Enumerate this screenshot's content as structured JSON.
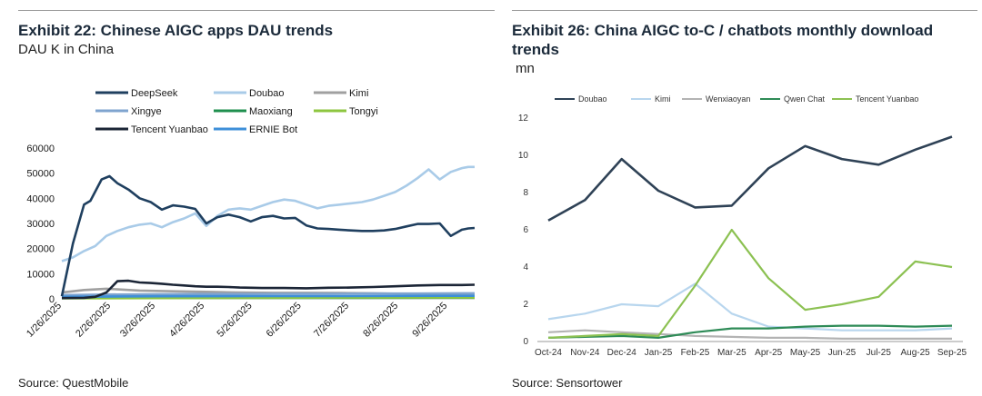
{
  "left": {
    "title": "Exhibit 22: Chinese AIGC apps DAU trends",
    "subtitle": "DAU K in China",
    "source": "Source: QuestMobile"
  },
  "right": {
    "title": "Exhibit 26: China AIGC to-C / chatbots monthly download trends",
    "subtitle": "mn",
    "source": "Source: Sensortower"
  },
  "chart_data": [
    {
      "type": "line",
      "title": "Exhibit 22: Chinese AIGC apps DAU trends",
      "ylabel": "DAU K in China",
      "ylim": [
        0,
        60000
      ],
      "yticks": [
        0,
        10000,
        20000,
        30000,
        40000,
        50000,
        60000
      ],
      "yticklabels": [
        "0",
        "10000",
        "20000",
        "30000",
        "40000",
        "50000",
        "60000"
      ],
      "xlim": [
        0,
        260
      ],
      "xticks": [
        0,
        31,
        59,
        90,
        120,
        151,
        181,
        212,
        243
      ],
      "xticklabels": [
        "1/26/2025",
        "2/26/2025",
        "3/26/2025",
        "4/26/2025",
        "5/26/2025",
        "6/26/2025",
        "7/26/2025",
        "8/26/2025",
        "9/26/2025"
      ],
      "legend": "top",
      "grid": false,
      "series": [
        {
          "name": "DeepSeek",
          "color": "#1f3f5f",
          "x": [
            0,
            7,
            14,
            18,
            25,
            30,
            35,
            42,
            49,
            56,
            63,
            70,
            77,
            84,
            91,
            98,
            105,
            112,
            119,
            126,
            133,
            140,
            147,
            154,
            161,
            168,
            175,
            182,
            189,
            196,
            203,
            210,
            217,
            224,
            231,
            238,
            245,
            252,
            256,
            260
          ],
          "values": [
            1000,
            22000,
            37500,
            39000,
            47500,
            48800,
            46000,
            43500,
            40000,
            38500,
            35500,
            37200,
            36700,
            35800,
            30000,
            32500,
            33500,
            32500,
            30800,
            32500,
            33000,
            32000,
            32200,
            29200,
            28000,
            27800,
            27500,
            27200,
            27000,
            27000,
            27200,
            27800,
            28800,
            29800,
            29800,
            30000,
            25000,
            27500,
            28000,
            28200
          ]
        },
        {
          "name": "Doubao",
          "color": "#a9cbe8",
          "x": [
            0,
            7,
            14,
            21,
            28,
            35,
            42,
            49,
            56,
            63,
            70,
            77,
            84,
            91,
            98,
            105,
            112,
            119,
            126,
            133,
            140,
            147,
            154,
            161,
            168,
            175,
            182,
            189,
            196,
            203,
            210,
            217,
            224,
            231,
            238,
            245,
            252,
            256,
            260
          ],
          "values": [
            15000,
            16500,
            19000,
            21000,
            25000,
            27000,
            28500,
            29500,
            30000,
            28500,
            30500,
            32000,
            34000,
            29000,
            33000,
            35500,
            36000,
            35500,
            37000,
            38500,
            39500,
            39000,
            37500,
            36000,
            37000,
            37500,
            38000,
            38500,
            39500,
            41000,
            42500,
            45000,
            48000,
            51500,
            47500,
            50500,
            52000,
            52500,
            52500
          ]
        },
        {
          "name": "Kimi",
          "color": "#a0a0a0",
          "x": [
            0,
            14,
            28,
            49,
            70,
            91,
            112,
            133,
            154,
            175,
            196,
            217,
            238,
            260
          ],
          "values": [
            2500,
            3500,
            4000,
            3300,
            3000,
            2800,
            2500,
            2400,
            2400,
            2300,
            2200,
            2000,
            2000,
            2000
          ]
        },
        {
          "name": "Xingye",
          "color": "#7fa4cf",
          "x": [
            0,
            28,
            56,
            84,
            112,
            140,
            168,
            196,
            224,
            260
          ],
          "values": [
            1500,
            1700,
            1800,
            1900,
            1900,
            2000,
            2000,
            2100,
            2100,
            2200
          ]
        },
        {
          "name": "Maoxiang",
          "color": "#1f8f4e",
          "x": [
            0,
            60,
            120,
            180,
            240,
            260
          ],
          "values": [
            300,
            350,
            400,
            400,
            450,
            450
          ]
        },
        {
          "name": "Tongyi",
          "color": "#8dc63f",
          "x": [
            0,
            60,
            120,
            180,
            240,
            260
          ],
          "values": [
            200,
            300,
            400,
            500,
            500,
            500
          ]
        },
        {
          "name": "Tencent Yuanbao",
          "color": "#1b2536",
          "x": [
            0,
            14,
            21,
            28,
            35,
            42,
            49,
            56,
            63,
            70,
            77,
            84,
            91,
            98,
            105,
            112,
            126,
            140,
            154,
            168,
            182,
            196,
            210,
            224,
            238,
            252,
            260
          ],
          "values": [
            300,
            400,
            800,
            2500,
            7000,
            7200,
            6500,
            6300,
            6000,
            5600,
            5300,
            5000,
            4800,
            4800,
            4700,
            4500,
            4300,
            4300,
            4200,
            4400,
            4500,
            4700,
            5000,
            5300,
            5500,
            5500,
            5600
          ]
        },
        {
          "name": "ERNIE Bot",
          "color": "#3d8fd9",
          "x": [
            0,
            60,
            120,
            180,
            240,
            260
          ],
          "values": [
            800,
            1000,
            1100,
            1100,
            1200,
            1200
          ]
        }
      ]
    },
    {
      "type": "line",
      "title": "Exhibit 26: China AIGC to-C / chatbots monthly download trends",
      "ylabel": "mn",
      "ylim": [
        0,
        12
      ],
      "yticks": [
        0,
        2,
        4,
        6,
        8,
        10,
        12
      ],
      "categories": [
        "Oct-24",
        "Nov-24",
        "Dec-24",
        "Jan-25",
        "Feb-25",
        "Mar-25",
        "Apr-25",
        "May-25",
        "Jun-25",
        "Jul-25",
        "Aug-25",
        "Sep-25"
      ],
      "legend": "top",
      "grid": false,
      "series": [
        {
          "name": "Doubao",
          "color": "#2f4256",
          "values": [
            6.5,
            7.6,
            9.8,
            8.1,
            7.2,
            7.3,
            9.3,
            10.5,
            9.8,
            9.5,
            10.3,
            11.0
          ]
        },
        {
          "name": "Kimi",
          "color": "#b8d6ee",
          "values": [
            1.2,
            1.5,
            2.0,
            1.9,
            3.1,
            1.5,
            0.8,
            0.7,
            0.6,
            0.6,
            0.6,
            0.7
          ]
        },
        {
          "name": "Wenxiaoyan",
          "color": "#b3b3b3",
          "values": [
            0.5,
            0.6,
            0.5,
            0.4,
            0.3,
            0.25,
            0.2,
            0.2,
            0.15,
            0.15,
            0.15,
            0.15
          ]
        },
        {
          "name": "Qwen Chat",
          "color": "#2e8b57",
          "values": [
            0.2,
            0.25,
            0.3,
            0.2,
            0.5,
            0.7,
            0.7,
            0.8,
            0.85,
            0.85,
            0.8,
            0.85
          ]
        },
        {
          "name": "Tencent Yuanbao",
          "color": "#8cc152",
          "values": [
            0.2,
            0.3,
            0.4,
            0.3,
            3.0,
            6.0,
            3.4,
            1.7,
            2.0,
            2.4,
            4.3,
            4.0
          ]
        }
      ]
    }
  ]
}
